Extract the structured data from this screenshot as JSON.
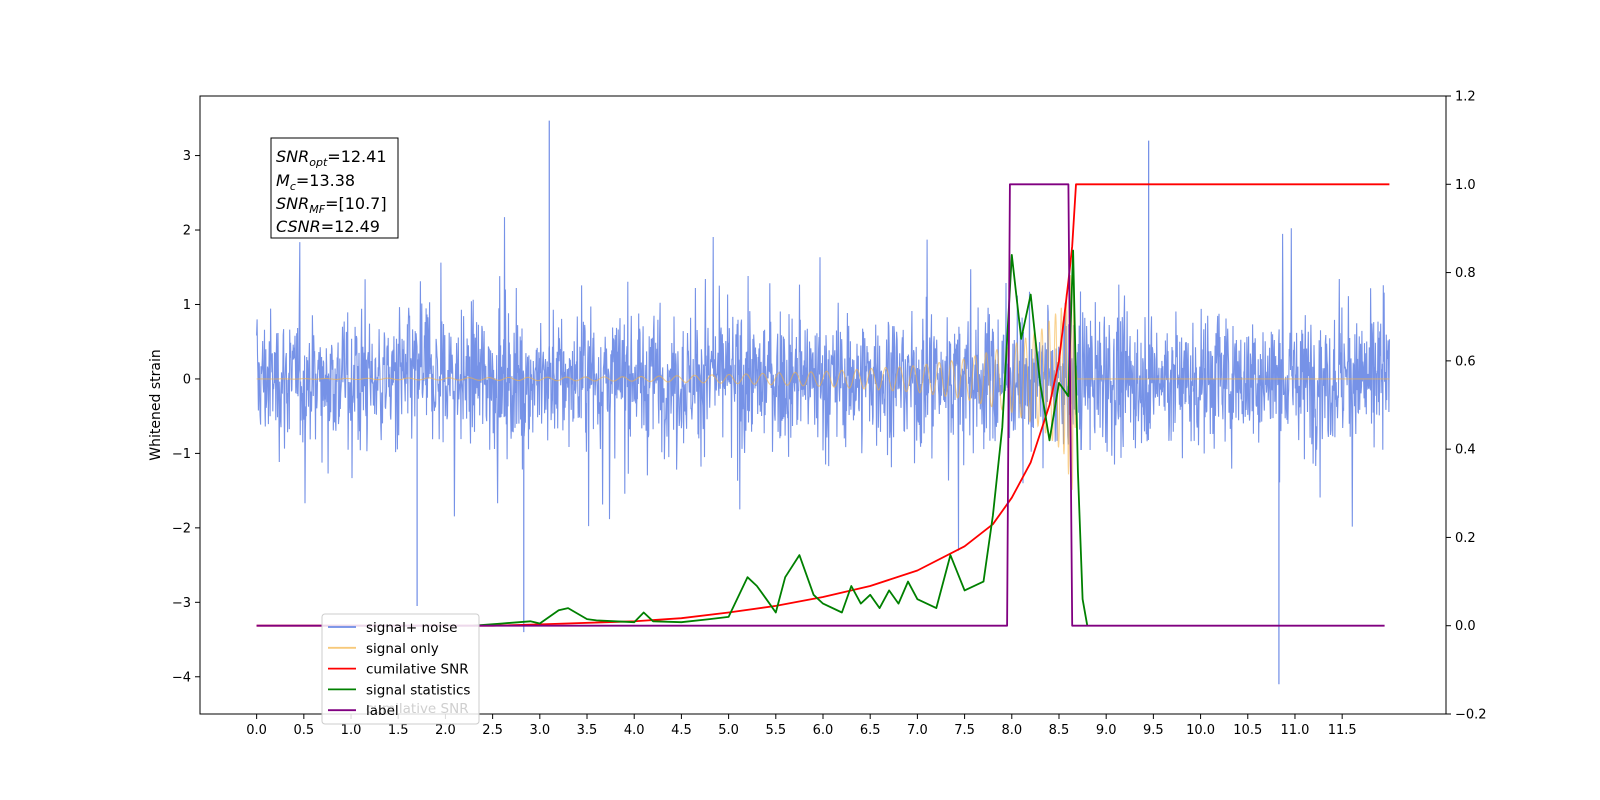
{
  "chart_data": {
    "type": "line",
    "title": "",
    "xlabel": "",
    "ylabel": "Whitened strain",
    "y2label": "",
    "xlim": [
      -0.6,
      12.6
    ],
    "ylim": [
      -4.5,
      3.8
    ],
    "y2lim": [
      -0.2,
      1.2
    ],
    "x_ticks": [
      "0.0",
      "0.5",
      "1.0",
      "1.5",
      "2.0",
      "2.5",
      "3.0",
      "3.5",
      "4.0",
      "4.5",
      "5.0",
      "5.5",
      "6.0",
      "6.5",
      "7.0",
      "7.5",
      "8.0",
      "8.5",
      "9.0",
      "9.5",
      "10.0",
      "10.5",
      "11.0",
      "11.5"
    ],
    "y_ticks": [
      "−4",
      "−3",
      "−2",
      "−1",
      "0",
      "1",
      "2",
      "3"
    ],
    "y2_ticks": [
      "−0.2",
      "0.0",
      "0.2",
      "0.4",
      "0.6",
      "0.8",
      "1.0",
      "1.2"
    ],
    "grid": false,
    "legend_position": "lower-left",
    "annotation": {
      "snr_opt": {
        "sym": "SNR",
        "sub": "opt",
        "value": "=12.41"
      },
      "mc": {
        "sym": "M",
        "sub": "c",
        "value": "=13.38"
      },
      "snr_mf": {
        "sym": "SNR",
        "sub": "MF",
        "value": "=[10.7]"
      },
      "csnr": {
        "sym": "CSNR",
        "sub": "",
        "value": "=12.49"
      }
    },
    "series": [
      {
        "name": "signal+ noise",
        "axis": "left",
        "color": "#6f8ce6",
        "x_range": [
          0.0,
          12.0
        ],
        "typical_range": [
          -1.6,
          1.6
        ],
        "extremes": [
          -4.1,
          3.47
        ]
      },
      {
        "name": "signal only",
        "axis": "left",
        "color": "#f5b342",
        "x_range": [
          0.0,
          12.0
        ],
        "amplitude_points": [
          [
            0.0,
            0.0
          ],
          [
            4.0,
            0.03
          ],
          [
            5.0,
            0.06
          ],
          [
            6.0,
            0.1
          ],
          [
            7.0,
            0.18
          ],
          [
            7.5,
            0.27
          ],
          [
            8.0,
            0.45
          ],
          [
            8.3,
            0.65
          ],
          [
            8.55,
            1.0
          ],
          [
            8.65,
            1.55
          ],
          [
            8.69,
            0.0
          ],
          [
            12.0,
            0.0
          ]
        ]
      },
      {
        "name": "cumilative SNR",
        "axis": "right",
        "color": "#ff0000",
        "points": [
          [
            0.0,
            0.0
          ],
          [
            2.5,
            0.0
          ],
          [
            3.0,
            0.003
          ],
          [
            4.0,
            0.01
          ],
          [
            4.5,
            0.017
          ],
          [
            5.0,
            0.03
          ],
          [
            5.5,
            0.045
          ],
          [
            6.0,
            0.065
          ],
          [
            6.5,
            0.09
          ],
          [
            7.0,
            0.125
          ],
          [
            7.5,
            0.18
          ],
          [
            7.8,
            0.23
          ],
          [
            8.0,
            0.29
          ],
          [
            8.2,
            0.37
          ],
          [
            8.4,
            0.5
          ],
          [
            8.5,
            0.6
          ],
          [
            8.6,
            0.78
          ],
          [
            8.64,
            0.86
          ],
          [
            8.68,
            1.0
          ],
          [
            12.0,
            1.0
          ]
        ]
      },
      {
        "name": "signal statistics",
        "axis": "right",
        "color": "#008000",
        "points": [
          [
            2.3,
            0.0
          ],
          [
            2.6,
            0.005
          ],
          [
            2.9,
            0.01
          ],
          [
            3.0,
            0.005
          ],
          [
            3.2,
            0.035
          ],
          [
            3.3,
            0.04
          ],
          [
            3.5,
            0.015
          ],
          [
            3.6,
            0.012
          ],
          [
            3.8,
            0.01
          ],
          [
            4.0,
            0.008
          ],
          [
            4.1,
            0.03
          ],
          [
            4.2,
            0.01
          ],
          [
            4.5,
            0.008
          ],
          [
            4.8,
            0.015
          ],
          [
            5.0,
            0.02
          ],
          [
            5.2,
            0.11
          ],
          [
            5.3,
            0.09
          ],
          [
            5.4,
            0.06
          ],
          [
            5.5,
            0.03
          ],
          [
            5.6,
            0.11
          ],
          [
            5.75,
            0.16
          ],
          [
            5.9,
            0.07
          ],
          [
            6.0,
            0.05
          ],
          [
            6.2,
            0.03
          ],
          [
            6.3,
            0.09
          ],
          [
            6.4,
            0.05
          ],
          [
            6.5,
            0.07
          ],
          [
            6.6,
            0.04
          ],
          [
            6.7,
            0.08
          ],
          [
            6.8,
            0.05
          ],
          [
            6.9,
            0.1
          ],
          [
            7.0,
            0.06
          ],
          [
            7.2,
            0.04
          ],
          [
            7.35,
            0.16
          ],
          [
            7.5,
            0.08
          ],
          [
            7.7,
            0.1
          ],
          [
            7.8,
            0.25
          ],
          [
            7.9,
            0.45
          ],
          [
            8.0,
            0.84
          ],
          [
            8.1,
            0.65
          ],
          [
            8.2,
            0.75
          ],
          [
            8.3,
            0.55
          ],
          [
            8.4,
            0.42
          ],
          [
            8.5,
            0.55
          ],
          [
            8.6,
            0.52
          ],
          [
            8.65,
            0.85
          ],
          [
            8.7,
            0.35
          ],
          [
            8.75,
            0.06
          ],
          [
            8.8,
            0.0
          ]
        ]
      },
      {
        "name": "label",
        "axis": "right",
        "color": "#800080",
        "points": [
          [
            0.0,
            0.0
          ],
          [
            7.95,
            0.0
          ],
          [
            7.98,
            1.0
          ],
          [
            8.6,
            1.0
          ],
          [
            8.64,
            0.0
          ],
          [
            11.95,
            0.0
          ]
        ]
      }
    ]
  }
}
